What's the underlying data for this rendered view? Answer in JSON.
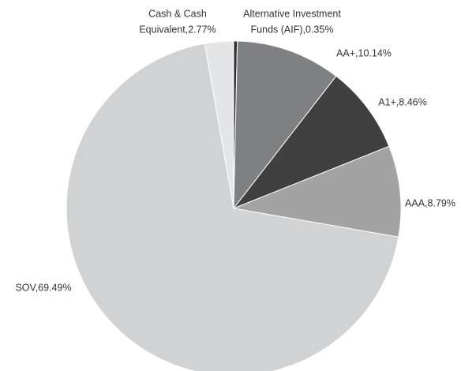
{
  "chart_data": {
    "type": "pie",
    "labels": [
      [
        "Alternative Investment",
        "Funds (AIF),0.35%"
      ],
      [
        "AA+,10.14%"
      ],
      [
        "A1+,8.46%"
      ],
      [
        "AAA,8.79%"
      ],
      [
        "SOV,69.49%"
      ],
      [
        "Cash & Cash",
        "Equivalent,2.77%"
      ]
    ],
    "values": [
      0.35,
      10.14,
      8.46,
      8.79,
      69.49,
      2.77
    ],
    "colors": [
      "#2e2e2e",
      "#7f8083",
      "#404040",
      "#a3a3a3",
      "#d1d2d4",
      "#e4e5e6"
    ]
  }
}
